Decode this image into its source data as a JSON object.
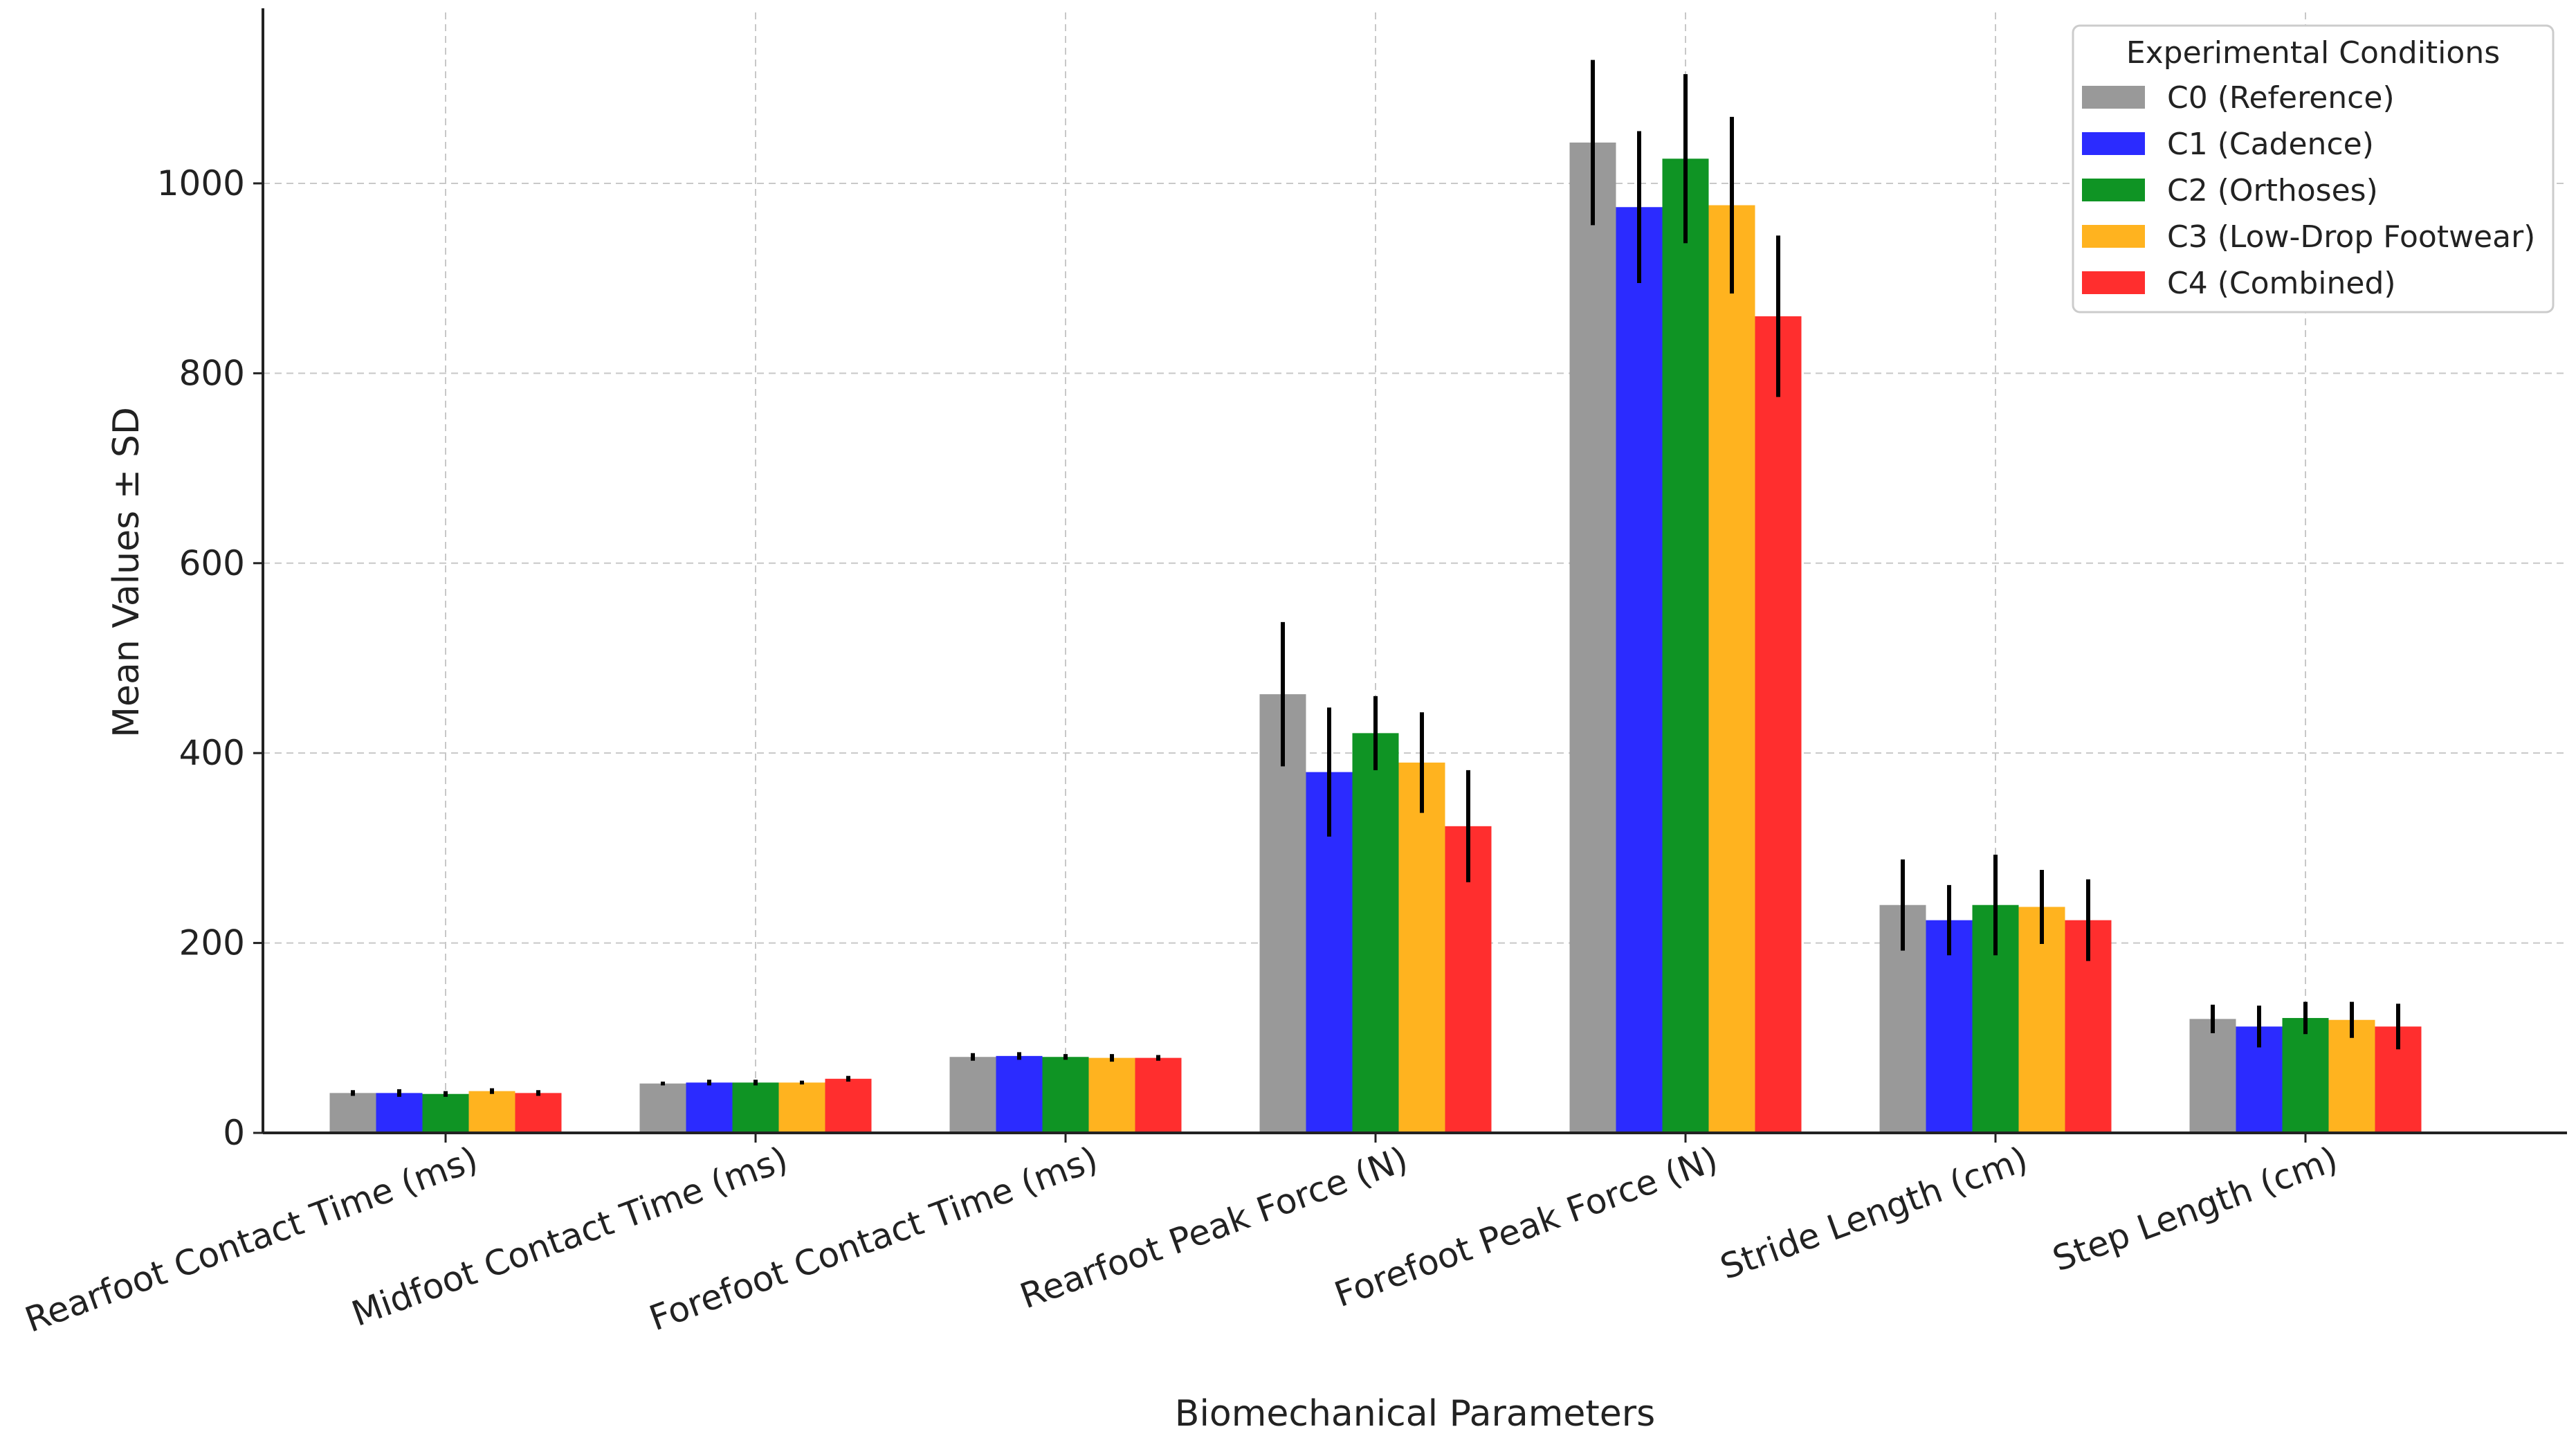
{
  "chart_data": {
    "type": "bar",
    "title": "",
    "xlabel": "Biomechanical Parameters",
    "ylabel": "Mean Values ± SD",
    "ylim": [
      0,
      1180
    ],
    "yticks": [
      0,
      200,
      400,
      600,
      800,
      1000
    ],
    "grid": true,
    "legend": {
      "title": "Experimental Conditions",
      "placement": "top-right"
    },
    "categories": [
      "Rearfoot Contact Time (ms)",
      "Midfoot Contact Time (ms)",
      "Forefoot Contact Time (ms)",
      "Rearfoot Peak Force (N)",
      "Forefoot Peak Force (N)",
      "Stride Length (cm)",
      "Step Length (cm)"
    ],
    "series": [
      {
        "name": "C0 (Reference)",
        "color": "#999999",
        "values": [
          42,
          52,
          80,
          462,
          1043,
          240,
          120
        ],
        "errors": [
          3,
          2,
          4,
          76,
          87,
          48,
          15
        ]
      },
      {
        "name": "C1 (Cadence)",
        "color": "#2b2bff",
        "values": [
          42,
          53,
          81,
          380,
          975,
          224,
          112
        ],
        "errors": [
          4,
          3,
          4,
          68,
          80,
          37,
          22
        ]
      },
      {
        "name": "C2 (Orthoses)",
        "color": "#0f9424",
        "values": [
          41,
          53,
          80,
          421,
          1026,
          240,
          121
        ],
        "errors": [
          3,
          3,
          3,
          39,
          89,
          53,
          17
        ]
      },
      {
        "name": "C3 (Low-Drop Footwear)",
        "color": "#ffb31f",
        "values": [
          44,
          53,
          79,
          390,
          977,
          238,
          119
        ],
        "errors": [
          3,
          2,
          4,
          53,
          93,
          39,
          19
        ]
      },
      {
        "name": "C4 (Combined)",
        "color": "#ff2e2e",
        "values": [
          42,
          57,
          79,
          323,
          860,
          224,
          112
        ],
        "errors": [
          3,
          3,
          3,
          59,
          85,
          43,
          24
        ]
      }
    ]
  }
}
